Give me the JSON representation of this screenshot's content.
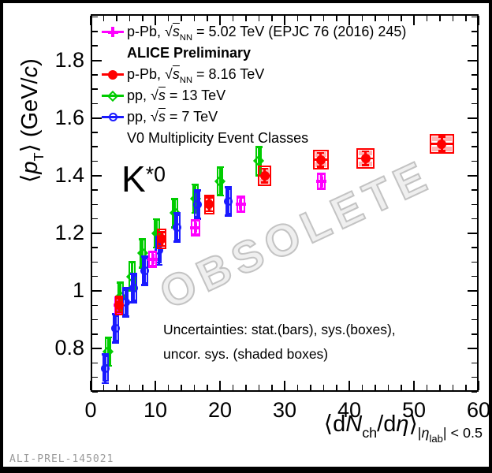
{
  "frame": {
    "obsolete_watermark": "OBSOLETE",
    "figure_id": "ALI-PREL-145021"
  },
  "annotations": {
    "particle_label_plain": "K*0",
    "particle_label_segments": [
      {
        "t": "K"
      },
      {
        "t": "*0",
        "sup": 1
      }
    ],
    "uncertainties": [
      "Uncertainties: stat.(bars), sys.(boxes),",
      "uncor. sys. (shaded boxes)"
    ]
  },
  "chart_data": {
    "type": "scatter",
    "title": "",
    "xlabel": "<dN_ch/deta>_|eta_lab| < 0.5",
    "ylabel": "<p_T> (GeV/c)",
    "xlabel_segments": [
      {
        "t": "⟨d"
      },
      {
        "t": "N",
        "i": 1
      },
      {
        "t": "ch",
        "sub": 1
      },
      {
        "t": "/d"
      },
      {
        "t": "η",
        "i": 1
      },
      {
        "t": "⟩"
      },
      {
        "t": "|",
        "sub": 1
      },
      {
        "t": "η",
        "i": 1,
        "sub": 1
      },
      {
        "t": "lab",
        "sub": 2
      },
      {
        "t": "| < 0.5",
        "sub": 1
      }
    ],
    "ylabel_segments": [
      {
        "t": "⟨"
      },
      {
        "t": "p",
        "i": 1
      },
      {
        "t": "T",
        "sub": 1
      },
      {
        "t": "⟩ (GeV/"
      },
      {
        "t": "c",
        "i": 1
      },
      {
        "t": ")"
      }
    ],
    "xlim": [
      0,
      60
    ],
    "ylim": [
      0.65,
      1.96
    ],
    "x_major_ticks": [
      0,
      10,
      20,
      30,
      40,
      50,
      60
    ],
    "x_tick_labels": [
      "0",
      "10",
      "20",
      "30",
      "40",
      "50",
      "60"
    ],
    "x_minor_step": 2,
    "y_major_ticks": [
      0.8,
      1.0,
      1.2,
      1.4,
      1.6,
      1.8
    ],
    "y_tick_labels": [
      "0.8",
      "1",
      "1.2",
      "1.4",
      "1.6",
      "1.8"
    ],
    "y_minor_step": 0.05,
    "grid": false,
    "legend_position": "top-left",
    "legend": [
      {
        "marker": "plus-filled",
        "color": "#ff00ff",
        "plain": "p-Pb, √sNN = 5.02 TeV (EPJC 76 (2016) 245)",
        "segments": [
          {
            "t": "p-Pb, "
          },
          {
            "t": "√"
          },
          {
            "t": "s",
            "i": 1,
            "ol": 1
          },
          {
            "t": "NN",
            "sub": 1
          },
          {
            "t": " = 5.02 TeV (EPJC 76 (2016) 245)"
          }
        ]
      },
      {
        "marker": null,
        "plain": "ALICE Preliminary",
        "segments": [
          {
            "t": "ALICE Preliminary",
            "b": 1
          }
        ]
      },
      {
        "marker": "circle-filled",
        "color": "#ff0000",
        "plain": "p-Pb, √sNN = 8.16 TeV",
        "segments": [
          {
            "t": "p-Pb, "
          },
          {
            "t": "√"
          },
          {
            "t": "s",
            "i": 1,
            "ol": 1
          },
          {
            "t": "NN",
            "sub": 1
          },
          {
            "t": " = 8.16 TeV"
          }
        ]
      },
      {
        "marker": "diamond-open",
        "color": "#00cc00",
        "plain": "pp, √s = 13 TeV",
        "segments": [
          {
            "t": "pp, "
          },
          {
            "t": "√"
          },
          {
            "t": "s",
            "i": 1,
            "ol": 1
          },
          {
            "t": " = 13 TeV"
          }
        ]
      },
      {
        "marker": "circle-open",
        "color": "#1a1aff",
        "plain": "pp, √s = 7 TeV",
        "segments": [
          {
            "t": "pp, "
          },
          {
            "t": "√"
          },
          {
            "t": "s",
            "i": 1,
            "ol": 1
          },
          {
            "t": " = 7 TeV"
          }
        ]
      },
      {
        "marker": null,
        "plain": "V0 Multiplicity Event Classes",
        "segments": [
          {
            "t": "V0 Multiplicity Event Classes"
          }
        ]
      }
    ],
    "series": [
      {
        "name": "pp, √s = 13 TeV",
        "marker": "diamond-open",
        "color": "#00cc00",
        "stat_err": 0.05,
        "sys_half_height": 0.05,
        "sys_half_width": 0.5,
        "hbar": false,
        "shaded_all": false,
        "points": [
          {
            "x": 2.7,
            "y": 0.79
          },
          {
            "x": 4.6,
            "y": 0.98
          },
          {
            "x": 6.4,
            "y": 1.05
          },
          {
            "x": 8.0,
            "y": 1.13
          },
          {
            "x": 10.2,
            "y": 1.2
          },
          {
            "x": 13.0,
            "y": 1.27
          },
          {
            "x": 16.2,
            "y": 1.32
          },
          {
            "x": 20.0,
            "y": 1.38
          },
          {
            "x": 26.0,
            "y": 1.45
          }
        ]
      },
      {
        "name": "pp, √s = 7 TeV",
        "marker": "circle-open",
        "color": "#1a1aff",
        "stat_err": 0.05,
        "sys_half_height": 0.045,
        "sys_half_width": 0.5,
        "hbar": false,
        "shaded_all": false,
        "points": [
          {
            "x": 2.3,
            "y": 0.73
          },
          {
            "x": 3.9,
            "y": 0.87
          },
          {
            "x": 5.4,
            "y": 0.96
          },
          {
            "x": 6.7,
            "y": 1.01
          },
          {
            "x": 8.4,
            "y": 1.07
          },
          {
            "x": 10.5,
            "y": 1.14
          },
          {
            "x": 13.4,
            "y": 1.22
          },
          {
            "x": 16.5,
            "y": 1.3
          },
          {
            "x": 21.3,
            "y": 1.31,
            "shaded": true
          }
        ]
      },
      {
        "name": "p-Pb, √sNN = 5.02 TeV",
        "marker": "plus-filled",
        "color": "#ff00ff",
        "stat_err": 0.025,
        "sys_half_height": 0.03,
        "sys_half_width": 0.7,
        "hbar": true,
        "shaded_all": false,
        "points": [
          {
            "x": 4.3,
            "y": 0.95
          },
          {
            "x": 9.6,
            "y": 1.11
          },
          {
            "x": 16.2,
            "y": 1.22
          },
          {
            "x": 23.2,
            "y": 1.3
          },
          {
            "x": 35.7,
            "y": 1.38,
            "shaded": true
          }
        ]
      },
      {
        "name": "p-Pb, √sNN = 8.16 TeV",
        "marker": "circle-filled",
        "color": "#ff0000",
        "stat_err": 0.025,
        "sys_half_height": 0.035,
        "sys_half_width": 0.8,
        "hbar": true,
        "shaded_all": true,
        "points": [
          {
            "x": 4.4,
            "y": 0.95,
            "hw": 0.6
          },
          {
            "x": 11.0,
            "y": 1.18,
            "hw": 0.75
          },
          {
            "x": 18.3,
            "y": 1.3,
            "hw": 0.8
          },
          {
            "x": 26.9,
            "y": 1.4,
            "hw": 1.0
          },
          {
            "x": 35.6,
            "y": 1.455,
            "hw": 1.2
          },
          {
            "x": 42.5,
            "y": 1.46,
            "hw": 1.35
          },
          {
            "x": 54.3,
            "y": 1.51,
            "hw": 1.9
          }
        ]
      }
    ]
  }
}
